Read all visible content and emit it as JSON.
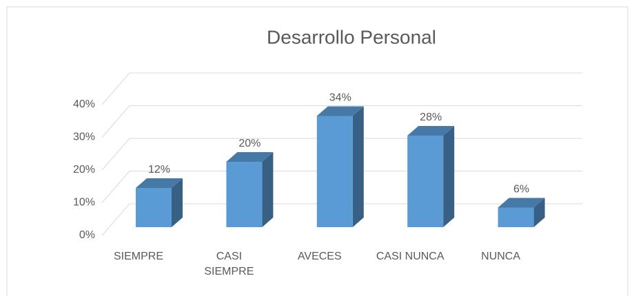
{
  "chart_data": {
    "type": "bar3d",
    "title": "Desarrollo Personal",
    "categories": [
      "SIEMPRE",
      "CASI SIEMPRE",
      "AVECES",
      "CASI NUNCA",
      "NUNCA"
    ],
    "values": [
      12,
      20,
      34,
      28,
      6
    ],
    "value_labels": [
      "12%",
      "20%",
      "34%",
      "28%",
      "6%"
    ],
    "color": "#5b9bd5",
    "ylim": [
      0,
      40
    ],
    "yticks": [
      {
        "value": 0,
        "label": "0%"
      },
      {
        "value": 10,
        "label": "10%"
      },
      {
        "value": 20,
        "label": "20%"
      },
      {
        "value": 30,
        "label": "30%"
      },
      {
        "value": 40,
        "label": "40%"
      }
    ],
    "grid": true
  }
}
